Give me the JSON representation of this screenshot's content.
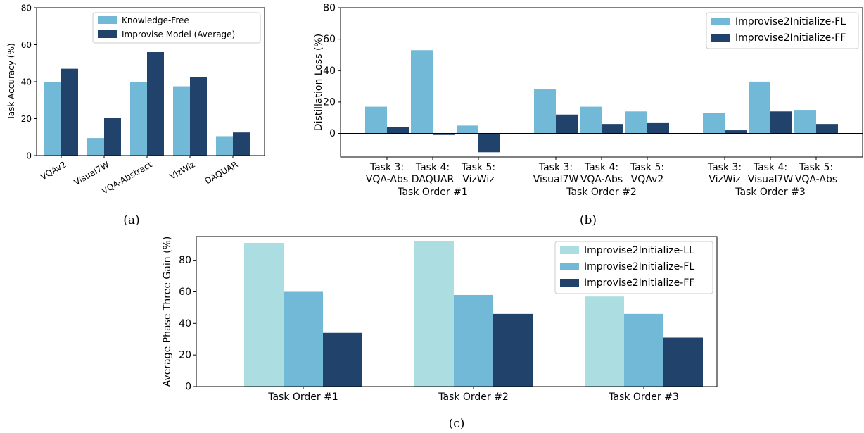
{
  "chart_data": [
    {
      "id": "a",
      "type": "bar",
      "panel_label": "(a)",
      "categories": [
        "VQAv2",
        "Visual7W",
        "VQA-Abstract",
        "VizWiz",
        "DAQUAR"
      ],
      "series": [
        {
          "name": "Knowledge-Free",
          "values": [
            40,
            9.5,
            40,
            37.5,
            10.5
          ],
          "color": "#71b9d6"
        },
        {
          "name": "Improvise Model (Average)",
          "values": [
            47,
            20.5,
            56,
            42.5,
            12.5
          ],
          "color": "#21436b"
        }
      ],
      "ylabel": "Task Accuracy (%)",
      "ylim": [
        0,
        80
      ],
      "yticks": [
        0,
        20,
        40,
        60,
        80
      ],
      "legend": "top-right",
      "grid": false
    },
    {
      "id": "b",
      "type": "bar",
      "panel_label": "(b)",
      "groups": [
        {
          "title": "Task Order #1",
          "categories": [
            [
              "Task 3:",
              "VQA-Abs"
            ],
            [
              "Task 4:",
              "DAQUAR"
            ],
            [
              "Task 5:",
              "VizWiz"
            ]
          ]
        },
        {
          "title": "Task Order #2",
          "categories": [
            [
              "Task 3:",
              "Visual7W"
            ],
            [
              "Task 4:",
              "VQA-Abs"
            ],
            [
              "Task 5:",
              "VQAv2"
            ]
          ]
        },
        {
          "title": "Task Order #3",
          "categories": [
            [
              "Task 3:",
              "VizWiz"
            ],
            [
              "Task 4:",
              "Visual7W"
            ],
            [
              "Task 5:",
              "VQA-Abs"
            ]
          ]
        }
      ],
      "series": [
        {
          "name": "Improvise2Initialize-FL",
          "values": [
            17,
            53,
            5,
            28,
            17,
            14,
            13,
            33,
            15
          ],
          "color": "#71b9d6"
        },
        {
          "name": "Improvise2Initialize-FF",
          "values": [
            4,
            -1,
            -12,
            12,
            6,
            7,
            2,
            14,
            6
          ],
          "color": "#21436b"
        }
      ],
      "ylabel": "Distillation Loss (%)",
      "ylim": [
        -15,
        80
      ],
      "yticks": [
        0,
        20,
        40,
        60,
        80
      ],
      "legend": "top-right",
      "grid": false
    },
    {
      "id": "c",
      "type": "bar",
      "panel_label": "(c)",
      "categories": [
        "Task Order #1",
        "Task Order #2",
        "Task Order #3"
      ],
      "series": [
        {
          "name": "Improvise2Initialize-LL",
          "values": [
            91,
            92,
            57
          ],
          "color": "#acdde1"
        },
        {
          "name": "Improvise2Initialize-FL",
          "values": [
            60,
            58,
            46
          ],
          "color": "#71b9d6"
        },
        {
          "name": "Improvise2Initialize-FF",
          "values": [
            34,
            46,
            31
          ],
          "color": "#21436b"
        }
      ],
      "ylabel": "Average Phase Three Gain (%)",
      "ylim": [
        0,
        95
      ],
      "yticks": [
        0,
        20,
        40,
        60,
        80
      ],
      "legend": "top-right",
      "grid": false
    }
  ]
}
